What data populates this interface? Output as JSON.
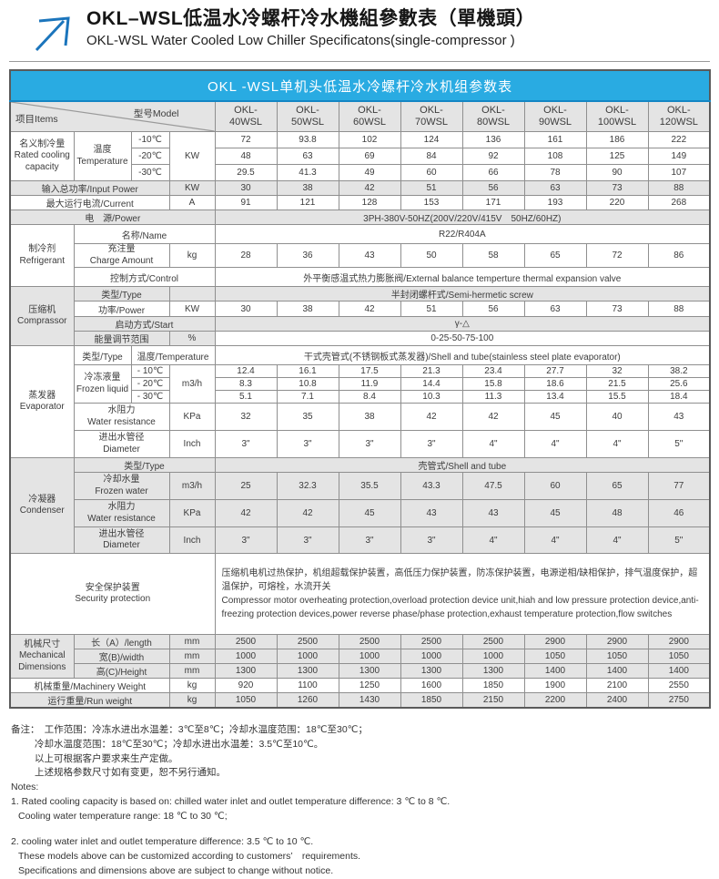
{
  "header": {
    "title_zh": "OKL–WSL低温水冷螺杆冷水機組參數表（單機頭）",
    "title_en": "OKL-WSL Water Cooled Low Chiller Specificatons(single-compressor )"
  },
  "table": {
    "banner": "OKL -WSL单机头低温水冷螺杆冷水机组参数表",
    "corner": {
      "items": "项目Items",
      "model": "型号Model"
    },
    "models": [
      {
        "l1": "OKL-",
        "l2": "40WSL"
      },
      {
        "l1": "OKL-",
        "l2": "50WSL"
      },
      {
        "l1": "OKL-",
        "l2": "60WSL"
      },
      {
        "l1": "OKL-",
        "l2": "70WSL"
      },
      {
        "l1": "OKL-",
        "l2": "80WSL"
      },
      {
        "l1": "OKL-",
        "l2": "90WSL"
      },
      {
        "l1": "OKL-",
        "l2": "100WSL"
      },
      {
        "l1": "OKL-",
        "l2": "120WSL"
      }
    ]
  },
  "sections": {
    "cooling": {
      "group_zh": "名义制冷量",
      "group_en": "Rated cooling capacity",
      "temp_zh": "温度",
      "temp_en": "Temperature",
      "unit": "KW",
      "rows": [
        {
          "temp": "-10℃",
          "values": [
            72,
            93.8,
            102,
            124,
            136,
            161,
            186,
            222
          ]
        },
        {
          "temp": "-20℃",
          "values": [
            48,
            63,
            69,
            84,
            92,
            108,
            125,
            149
          ]
        },
        {
          "temp": "-30℃",
          "values": [
            29.5,
            41.3,
            49,
            60,
            66,
            78,
            90,
            107
          ]
        }
      ]
    },
    "input_power": {
      "label": "输入总功率/Input Power",
      "unit": "KW",
      "values": [
        30,
        38,
        42,
        51,
        56,
        63,
        73,
        88
      ]
    },
    "current": {
      "label": "最大运行电流/Current",
      "unit": "A",
      "values": [
        91,
        121,
        128,
        153,
        171,
        193,
        220,
        268
      ]
    },
    "power_supply": {
      "label": "电　源/Power",
      "value": "3PH-380V-50HZ(200V/220V/415V　50HZ/60HZ)"
    },
    "refrigerant": {
      "group_zh": "制冷剂",
      "group_en": "Refrigerant",
      "name_label": "名称/Name",
      "name_value": "R22/R404A",
      "charge_zh": "充注量",
      "charge_en": "Charge Amount",
      "charge_unit": "kg",
      "charge_values": [
        28,
        36,
        43,
        50,
        58,
        65,
        72,
        86
      ],
      "control_label": "控制方式/Control",
      "control_value": "外平衡感温式热力膨胀阀/External balance temperture thermal expansion valve"
    },
    "compressor": {
      "group_zh": "压缩机",
      "group_en": "Comprassor",
      "type_label": "类型/Type",
      "type_value": "半封闭螺杆式/Semi-hermetic screw",
      "power_label": "功率/Power",
      "power_unit": "KW",
      "power_values": [
        30,
        38,
        42,
        51,
        56,
        63,
        73,
        88
      ],
      "start_label": "启动方式/Start",
      "start_value": "γ-△",
      "energy_label": "能量调节范围",
      "energy_unit": "%",
      "energy_value": "0-25-50-75-100"
    },
    "evaporator": {
      "group_zh": "蒸发器",
      "group_en": "Evaporator",
      "type_label": "类型/Type",
      "temp_label": "温度/Temperature",
      "type_value": "干式壳管式(不锈钢板式蒸发器)/Shell and tube(stainless steel plate evaporator)",
      "liquid_zh": "冷冻液量",
      "liquid_en": "Frozen liquid",
      "liquid_unit": "m3/h",
      "liquid_rows": [
        {
          "temp": "- 10℃",
          "values": [
            12.4,
            16.1,
            17.5,
            21.3,
            23.4,
            27.7,
            32,
            38.2
          ]
        },
        {
          "temp": "- 20℃",
          "values": [
            8.3,
            10.8,
            11.9,
            14.4,
            15.8,
            18.6,
            21.5,
            25.6
          ]
        },
        {
          "temp": "- 30℃",
          "values": [
            5.1,
            7.1,
            8.4,
            10.3,
            11.3,
            13.4,
            15.5,
            18.4
          ]
        }
      ],
      "resistance_zh": "水阻力",
      "resistance_en": "Water resistance",
      "resistance_unit": "KPa",
      "resistance_values": [
        32,
        35,
        38,
        42,
        42,
        45,
        40,
        43
      ],
      "diameter_zh": "进出水管径",
      "diameter_en": "Diameter",
      "diameter_unit": "Inch",
      "diameter_values": [
        "3\"",
        "3\"",
        "3\"",
        "3\"",
        "4\"",
        "4\"",
        "4\"",
        "5\""
      ]
    },
    "condenser": {
      "group_zh": "冷凝器",
      "group_en": "Condenser",
      "type_label": "类型/Type",
      "type_value": "壳管式/Shell and tube",
      "water_zh": "冷却水量",
      "water_en": "Frozen water",
      "water_unit": "m3/h",
      "water_values": [
        25,
        32.3,
        35.5,
        43.3,
        47.5,
        60,
        65,
        77
      ],
      "resistance_zh": "水阻力",
      "resistance_en": "Water resistance",
      "resistance_unit": "KPa",
      "resistance_values": [
        42,
        42,
        45,
        43,
        43,
        45,
        48,
        46
      ],
      "diameter_zh": "进出水管径",
      "diameter_en": "Diameter",
      "diameter_unit": "Inch",
      "diameter_values": [
        "3\"",
        "3\"",
        "3\"",
        "3\"",
        "4\"",
        "4\"",
        "4\"",
        "5\""
      ]
    },
    "security": {
      "label_zh": "安全保护装置",
      "label_en": "Security protection",
      "value_zh": "压缩机电机过热保护，机组超载保护装置，高低压力保护装置，防冻保护装置，电源逆相/缺相保护，排气温度保护，超温保护，可熔栓，水流开关",
      "value_en": "Compressor motor overheating protection,overload protection device unit,hiah and low pressure protection device,anti-freezing protection devices,power reverse phase/phase protection,exhaust temperature protection,flow switches"
    },
    "dimensions": {
      "group_zh": "机械尺寸",
      "group_en": "Mechanical Dimensions",
      "rows": [
        {
          "label": "长（A）/length",
          "unit": "mm",
          "values": [
            2500,
            2500,
            2500,
            2500,
            2500,
            2900,
            2900,
            2900
          ]
        },
        {
          "label": "宽(B)/width",
          "unit": "mm",
          "values": [
            1000,
            1000,
            1000,
            1000,
            1000,
            1050,
            1050,
            1050
          ]
        },
        {
          "label": "高(C)/Height",
          "unit": "mm",
          "values": [
            1300,
            1300,
            1300,
            1300,
            1300,
            1400,
            1400,
            1400
          ]
        }
      ]
    },
    "machinery_weight": {
      "label": "机械重量/Machinery Weight",
      "unit": "kg",
      "values": [
        920,
        1100,
        1250,
        1600,
        1850,
        1900,
        2100,
        2550
      ]
    },
    "run_weight": {
      "label": "运行重量/Run weight",
      "unit": "kg",
      "values": [
        1050,
        1260,
        1430,
        1850,
        2150,
        2200,
        2400,
        2750
      ]
    }
  },
  "notes": {
    "zh1": "备注：　工作范围：冷冻水进出水温差：3℃至8℃；冷却水温度范围：18℃至30℃；",
    "zh2": "冷却水温度范围：18℃至30℃；冷却水进出水温差：3.5℃至10℃。",
    "zh3": "以上可根据客户要求来生产定做。",
    "zh4": "上述规格参数尺寸如有变更，恕不另行通知。",
    "en0": "Notes:",
    "en1": "1. Rated cooling capacity is based on: chilled water inlet and outlet temperature  difference: 3 ℃ to 8 ℃.",
    "en2": "Cooling water temperature  range: 18 ℃ to 30 ℃;",
    "en3": "2. cooling water inlet and outlet temperature  difference: 3.5 ℃ to 10 ℃.",
    "en4": "These models above can be customized according to customers’　requirements.",
    "en5": "Specifications and dimensions above are subject to change without notice."
  },
  "colors": {
    "banner_blue": "#29abe2",
    "row_gray": "#e4e4e4",
    "logo_blue": "#1b75bc"
  }
}
